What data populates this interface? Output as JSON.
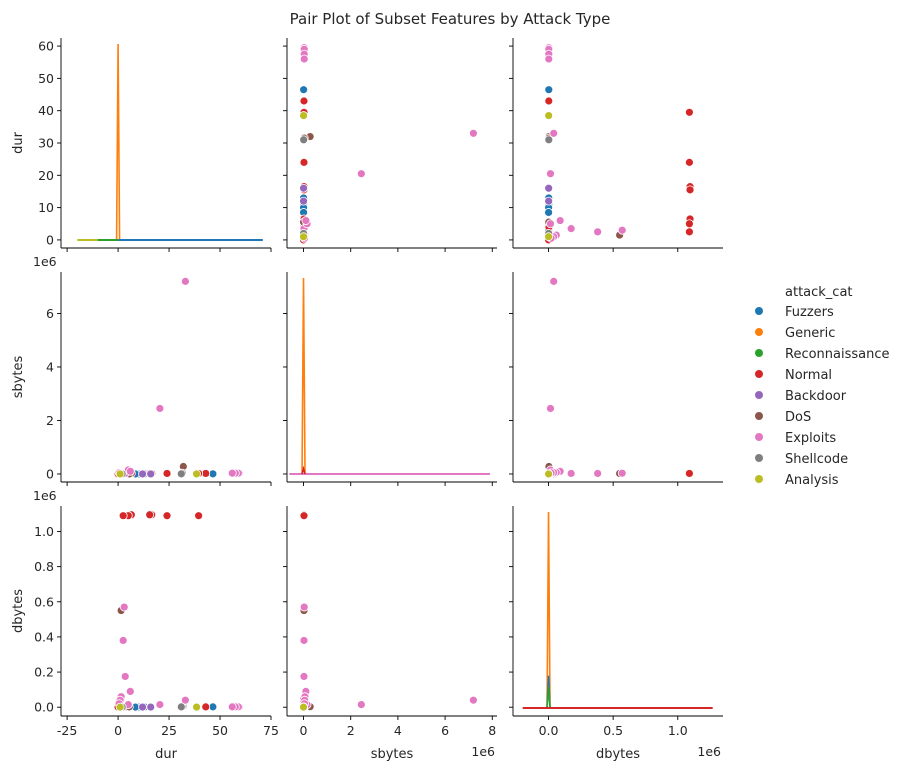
{
  "chart_data": {
    "type": "scatter",
    "title": "Pair Plot of Subset Features by Attack Type",
    "variables": [
      {
        "key": "dur",
        "label": "dur",
        "ticks": [
          0,
          10,
          20,
          30,
          40,
          50,
          60
        ],
        "xticks": [
          -25,
          0,
          25,
          50,
          75
        ],
        "lim": [
          -2.5,
          62.5
        ],
        "xlim": [
          -28,
          75
        ],
        "offset": ""
      },
      {
        "key": "sbytes",
        "label": "sbytes",
        "ticks": [
          0,
          2000000,
          4000000,
          6000000
        ],
        "tick_labels": [
          "0",
          "2",
          "4",
          "6"
        ],
        "xticks": [
          0,
          2000000,
          4000000,
          6000000,
          8000000
        ],
        "xtick_labels": [
          "0",
          "2",
          "4",
          "6",
          "8"
        ],
        "lim": [
          -300000,
          7550000
        ],
        "xlim": [
          -700000,
          8200000
        ],
        "offset": "1e6"
      },
      {
        "key": "dbytes",
        "label": "dbytes",
        "ticks": [
          0,
          200000,
          400000,
          600000,
          800000,
          1000000
        ],
        "tick_labels": [
          "0.0",
          "0.2",
          "0.4",
          "0.6",
          "0.8",
          "1.0"
        ],
        "xticks": [
          0,
          500000,
          1000000
        ],
        "xtick_labels": [
          "0.0",
          "0.5",
          "1.0"
        ],
        "lim": [
          -50000,
          1145000
        ],
        "xlim": [
          -275000,
          1350000
        ],
        "offset": "1e6"
      }
    ],
    "legend": {
      "title": "attack_cat",
      "placement": "right",
      "entries": [
        {
          "name": "Fuzzers",
          "color": "#1f77b4"
        },
        {
          "name": "Generic",
          "color": "#ff7f0e"
        },
        {
          "name": "Reconnaissance",
          "color": "#2ca02c"
        },
        {
          "name": "Normal",
          "color": "#d62728"
        },
        {
          "name": "Backdoor",
          "color": "#9467bd"
        },
        {
          "name": "DoS",
          "color": "#8c564b"
        },
        {
          "name": "Exploits",
          "color": "#e377c2"
        },
        {
          "name": "Shellcode",
          "color": "#7f7f7f"
        },
        {
          "name": "Analysis",
          "color": "#bcbd22"
        }
      ]
    },
    "points": [
      {
        "cat": "Fuzzers",
        "dur": 46.5,
        "sbytes": 5000,
        "dbytes": 2000
      },
      {
        "cat": "Fuzzers",
        "dur": 13.0,
        "sbytes": 3000,
        "dbytes": 1500
      },
      {
        "cat": "Fuzzers",
        "dur": 11.0,
        "sbytes": 3000,
        "dbytes": 1500
      },
      {
        "cat": "Fuzzers",
        "dur": 10.0,
        "sbytes": 2000,
        "dbytes": 500
      },
      {
        "cat": "Fuzzers",
        "dur": 8.5,
        "sbytes": 2000,
        "dbytes": 500
      },
      {
        "cat": "Fuzzers",
        "dur": 3.0,
        "sbytes": 1500,
        "dbytes": 800
      },
      {
        "cat": "Fuzzers",
        "dur": 1.0,
        "sbytes": 1000,
        "dbytes": 600
      },
      {
        "cat": "Fuzzers",
        "dur": 0.5,
        "sbytes": 1000,
        "dbytes": 400
      },
      {
        "cat": "Generic",
        "dur": 0.0,
        "sbytes": 200,
        "dbytes": 0
      },
      {
        "cat": "Generic",
        "dur": 0.0,
        "sbytes": 300,
        "dbytes": 0
      },
      {
        "cat": "Reconnaissance",
        "dur": 0.5,
        "sbytes": 500,
        "dbytes": 300
      },
      {
        "cat": "Reconnaissance",
        "dur": 1.5,
        "sbytes": 800,
        "dbytes": 500
      },
      {
        "cat": "Normal",
        "dur": 43.0,
        "sbytes": 20000,
        "dbytes": 2000
      },
      {
        "cat": "Normal",
        "dur": 39.5,
        "sbytes": 20000,
        "dbytes": 1090000
      },
      {
        "cat": "Normal",
        "dur": 31.0,
        "sbytes": 20000,
        "dbytes": 1500
      },
      {
        "cat": "Normal",
        "dur": 24.0,
        "sbytes": 20000,
        "dbytes": 1090000
      },
      {
        "cat": "Normal",
        "dur": 16.5,
        "sbytes": 20000,
        "dbytes": 1095000
      },
      {
        "cat": "Normal",
        "dur": 15.5,
        "sbytes": 20000,
        "dbytes": 1095000
      },
      {
        "cat": "Normal",
        "dur": 6.5,
        "sbytes": 20000,
        "dbytes": 1095000
      },
      {
        "cat": "Normal",
        "dur": 5.0,
        "sbytes": 20000,
        "dbytes": 1090000
      },
      {
        "cat": "Normal",
        "dur": 2.5,
        "sbytes": 20000,
        "dbytes": 1090000
      },
      {
        "cat": "Normal",
        "dur": 1.5,
        "sbytes": 15000,
        "dbytes": 550000
      },
      {
        "cat": "Normal",
        "dur": 4.0,
        "sbytes": 5000,
        "dbytes": 3000
      },
      {
        "cat": "Normal",
        "dur": 1.0,
        "sbytes": 5000,
        "dbytes": 45000
      },
      {
        "cat": "Normal",
        "dur": 0.5,
        "sbytes": 3000,
        "dbytes": 30000
      },
      {
        "cat": "Normal",
        "dur": 0.2,
        "sbytes": 2000,
        "dbytes": 15000
      },
      {
        "cat": "Normal",
        "dur": 0.0,
        "sbytes": 1000,
        "dbytes": 5000
      },
      {
        "cat": "Normal",
        "dur": 0.0,
        "sbytes": 500,
        "dbytes": 500
      },
      {
        "cat": "Backdoor",
        "dur": 16.0,
        "sbytes": 2000,
        "dbytes": 1000
      },
      {
        "cat": "Backdoor",
        "dur": 12.0,
        "sbytes": 1500,
        "dbytes": 1000
      },
      {
        "cat": "DoS",
        "dur": 32.0,
        "sbytes": 280000,
        "dbytes": 3000
      },
      {
        "cat": "DoS",
        "dur": 31.5,
        "sbytes": 30000,
        "dbytes": 2500
      },
      {
        "cat": "DoS",
        "dur": 1.5,
        "sbytes": 20000,
        "dbytes": 550000
      },
      {
        "cat": "DoS",
        "dur": 5.5,
        "sbytes": 3000,
        "dbytes": 2000
      },
      {
        "cat": "Exploits",
        "dur": 59.5,
        "sbytes": 30000,
        "dbytes": 2000
      },
      {
        "cat": "Exploits",
        "dur": 59.0,
        "sbytes": 30000,
        "dbytes": 2000
      },
      {
        "cat": "Exploits",
        "dur": 57.5,
        "sbytes": 30000,
        "dbytes": 2000
      },
      {
        "cat": "Exploits",
        "dur": 56.0,
        "sbytes": 30000,
        "dbytes": 2000
      },
      {
        "cat": "Exploits",
        "dur": 33.0,
        "sbytes": 7200000,
        "dbytes": 40000
      },
      {
        "cat": "Exploits",
        "dur": 20.5,
        "sbytes": 2450000,
        "dbytes": 15000
      },
      {
        "cat": "Exploits",
        "dur": 3.0,
        "sbytes": 30000,
        "dbytes": 570000
      },
      {
        "cat": "Exploits",
        "dur": 2.5,
        "sbytes": 20000,
        "dbytes": 380000
      },
      {
        "cat": "Exploits",
        "dur": 3.5,
        "sbytes": 20000,
        "dbytes": 175000
      },
      {
        "cat": "Exploits",
        "dur": 5.0,
        "sbytes": 150000,
        "dbytes": 15000
      },
      {
        "cat": "Exploits",
        "dur": 6.0,
        "sbytes": 100000,
        "dbytes": 90000
      },
      {
        "cat": "Exploits",
        "dur": 1.5,
        "sbytes": 60000,
        "dbytes": 60000
      },
      {
        "cat": "Exploits",
        "dur": 1.0,
        "sbytes": 50000,
        "dbytes": 40000
      },
      {
        "cat": "Exploits",
        "dur": 0.5,
        "sbytes": 40000,
        "dbytes": 20000
      },
      {
        "cat": "Shellcode",
        "dur": 31.0,
        "sbytes": 5000,
        "dbytes": 2000
      },
      {
        "cat": "Shellcode",
        "dur": 2.0,
        "sbytes": 1000,
        "dbytes": 1000
      },
      {
        "cat": "Analysis",
        "dur": 38.5,
        "sbytes": 2000,
        "dbytes": 1000
      },
      {
        "cat": "Analysis",
        "dur": 1.0,
        "sbytes": 500,
        "dbytes": 500
      }
    ],
    "diagonal": {
      "dur": [
        {
          "cat": "Generic",
          "kind": "spike",
          "at": 0.0,
          "height": 59.2
        },
        {
          "cat": "Fuzzers",
          "kind": "flat",
          "from": 0.0,
          "to": 71.0
        },
        {
          "cat": "Analysis",
          "kind": "flat",
          "from": -20.0,
          "to": -10.0
        },
        {
          "cat": "Reconnaissance",
          "kind": "flat",
          "from": -10.0,
          "to": 0.0
        }
      ],
      "sbytes": [
        {
          "cat": "Generic",
          "kind": "spike",
          "at": 0.0,
          "height": 7200000
        },
        {
          "cat": "Exploits",
          "kind": "flat",
          "from": -600000,
          "to": 7900000
        },
        {
          "cat": "Normal",
          "kind": "spike",
          "at": 0.0,
          "height": 200000
        }
      ],
      "dbytes": [
        {
          "cat": "Generic",
          "kind": "spike",
          "at": 0.0,
          "height": 1090000
        },
        {
          "cat": "Fuzzers",
          "kind": "spike",
          "at": 0.0,
          "height": 180000
        },
        {
          "cat": "Reconnaissance",
          "kind": "spike",
          "at": 0.0,
          "height": 120000
        },
        {
          "cat": "Normal",
          "kind": "flat",
          "from": -200000,
          "to": 1270000
        }
      ]
    }
  }
}
